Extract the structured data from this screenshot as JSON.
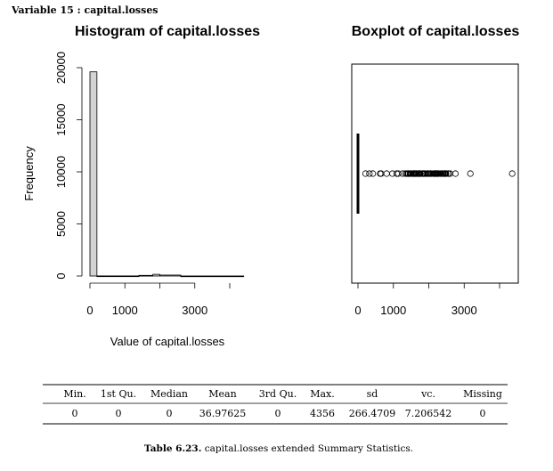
{
  "heading": {
    "label": "Variable 15 :",
    "name": "capital.losses"
  },
  "chart_data": [
    {
      "type": "bar",
      "title": "Histogram of capital.losses",
      "xlabel": "Value of capital.losses",
      "ylabel": "Frequency",
      "xlim": [
        0,
        4500
      ],
      "ylim": [
        0,
        20000
      ],
      "x_ticks": [
        0,
        1000,
        3000
      ],
      "y_ticks": [
        0,
        5000,
        10000,
        15000,
        20000
      ],
      "bins": [
        {
          "x0": 0,
          "x1": 200,
          "count": 19600
        },
        {
          "x0": 200,
          "x1": 1400,
          "count": 10
        },
        {
          "x0": 1400,
          "x1": 1800,
          "count": 60
        },
        {
          "x0": 1800,
          "x1": 2000,
          "count": 160
        },
        {
          "x0": 2000,
          "x1": 2600,
          "count": 90
        },
        {
          "x0": 2600,
          "x1": 4400,
          "count": 5
        }
      ],
      "grid": false
    },
    {
      "type": "boxplot",
      "title": "Boxplot of capital.losses",
      "xlim": [
        0,
        4500
      ],
      "x_ticks": [
        0,
        1000,
        3000
      ],
      "median": 0,
      "q1": 0,
      "q3": 0,
      "whisker_low": 0,
      "whisker_high": 0,
      "outliers": [
        213,
        323,
        419,
        625,
        653,
        810,
        974,
        1092,
        1138,
        1258,
        1340,
        1380,
        1408,
        1411,
        1422,
        1429,
        1467,
        1485,
        1504,
        1539,
        1564,
        1573,
        1579,
        1590,
        1594,
        1602,
        1617,
        1628,
        1648,
        1651,
        1668,
        1672,
        1719,
        1721,
        1726,
        1735,
        1740,
        1741,
        1755,
        1762,
        1816,
        1825,
        1844,
        1848,
        1876,
        1887,
        1902,
        1944,
        1974,
        1977,
        1980,
        2001,
        2042,
        2051,
        2057,
        2080,
        2129,
        2149,
        2163,
        2174,
        2179,
        2201,
        2205,
        2206,
        2231,
        2238,
        2246,
        2258,
        2267,
        2282,
        2339,
        2352,
        2377,
        2392,
        2415,
        2444,
        2457,
        2467,
        2472,
        2489,
        2547,
        2559,
        2603,
        2754,
        3175,
        4356
      ],
      "grid": false
    }
  ],
  "table": {
    "headers": [
      "Min.",
      "1st Qu.",
      "Median",
      "Mean",
      "3rd Qu.",
      "Max.",
      "sd",
      "vc.",
      "Missing"
    ],
    "rows": [
      [
        "0",
        "0",
        "0",
        "36.97625",
        "0",
        "4356",
        "266.4709",
        "7.206542",
        "0"
      ]
    ]
  },
  "caption": {
    "label": "Table 6.23.",
    "text": "capital.losses extended Summary Statistics."
  }
}
